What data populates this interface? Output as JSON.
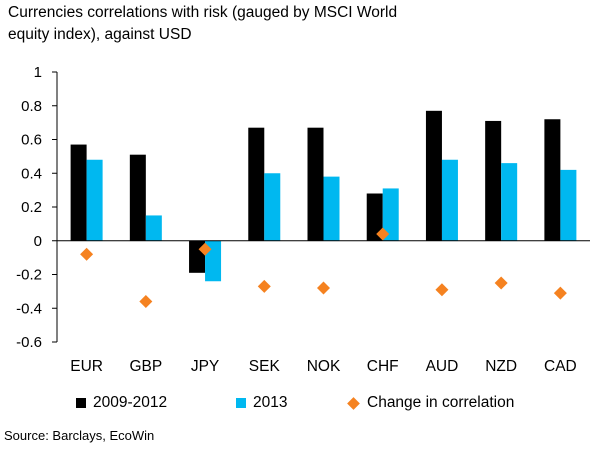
{
  "title_line1": "Currencies correlations with risk (gauged by MSCI World",
  "title_line2": "equity index), against USD",
  "source": "Source: Barclays, EcoWin",
  "chart_data": {
    "type": "bar",
    "title": "Currencies correlations with risk (gauged by MSCI World equity index), against USD",
    "categories": [
      "EUR",
      "GBP",
      "JPY",
      "SEK",
      "NOK",
      "CHF",
      "AUD",
      "NZD",
      "CAD"
    ],
    "series": [
      {
        "name": "2009-2012",
        "type": "bar",
        "color": "#000000",
        "values": [
          0.57,
          0.51,
          -0.19,
          0.67,
          0.67,
          0.28,
          0.77,
          0.71,
          0.72
        ]
      },
      {
        "name": "2013",
        "type": "bar",
        "color": "#00B8F0",
        "values": [
          0.48,
          0.15,
          -0.24,
          0.4,
          0.38,
          0.31,
          0.48,
          0.46,
          0.42
        ]
      },
      {
        "name": "Change in correlation",
        "type": "scatter",
        "marker": "diamond",
        "color": "#F58220",
        "values": [
          -0.08,
          -0.36,
          -0.05,
          -0.27,
          -0.28,
          0.04,
          -0.29,
          -0.25,
          -0.31
        ]
      }
    ],
    "yticks": [
      "1",
      "0.8",
      "0.6",
      "0.4",
      "0.2",
      "0",
      "-0.2",
      "-0.4",
      "-0.6"
    ],
    "ylim": [
      -0.6,
      1
    ],
    "grid": false,
    "legend_position": "bottom"
  }
}
